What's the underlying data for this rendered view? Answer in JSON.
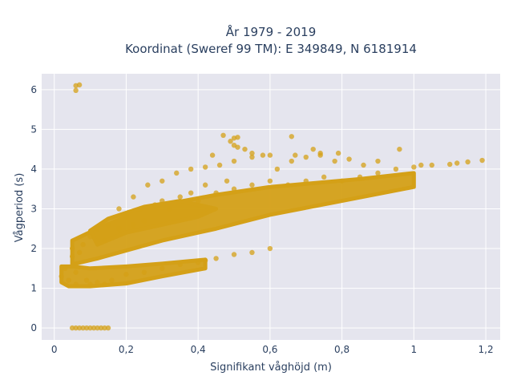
{
  "chart_data": {
    "type": "scatter",
    "title_line1": "År 1979 - 2019",
    "title_line2": "Koordinat (Sweref 99 TM): E 349849, N 6181914",
    "xlabel": "Signifikant våghöjd (m)",
    "ylabel": "Vågperiod (s)",
    "xlim": [
      -0.035,
      1.24
    ],
    "ylim": [
      -0.3,
      6.4
    ],
    "x_tick_values": [
      0,
      0.2,
      0.4,
      0.6,
      0.8,
      1.0,
      1.2
    ],
    "x_tick_labels": [
      "0",
      "0,2",
      "0,4",
      "0,6",
      "0,8",
      "1",
      "1,2"
    ],
    "y_tick_values": [
      0,
      1,
      2,
      3,
      4,
      5,
      6
    ],
    "y_tick_labels": [
      "0",
      "1",
      "2",
      "3",
      "4",
      "5",
      "6"
    ],
    "grid": true,
    "marker_color": "#d4a017",
    "background_color": "#e5e5ee",
    "points": [
      [
        0.06,
        6.1
      ],
      [
        0.07,
        6.12
      ],
      [
        0.06,
        5.98
      ],
      [
        0.05,
        0
      ],
      [
        0.06,
        0
      ],
      [
        0.07,
        0
      ],
      [
        0.08,
        0
      ],
      [
        0.09,
        0
      ],
      [
        0.1,
        0
      ],
      [
        0.11,
        0
      ],
      [
        0.12,
        0
      ],
      [
        0.13,
        0
      ],
      [
        0.14,
        0
      ],
      [
        0.15,
        0
      ],
      [
        0.02,
        1.3
      ],
      [
        0.03,
        1.5
      ],
      [
        0.04,
        1.2
      ],
      [
        0.05,
        1.8
      ],
      [
        0.06,
        1.4
      ],
      [
        0.05,
        2.0
      ],
      [
        0.07,
        1.9
      ],
      [
        0.08,
        2.1
      ],
      [
        0.06,
        1.1
      ],
      [
        0.09,
        1.2
      ],
      [
        0.1,
        1.1
      ],
      [
        0.12,
        1.15
      ],
      [
        0.14,
        1.1
      ],
      [
        0.16,
        1.2
      ],
      [
        0.1,
        2.3
      ],
      [
        0.12,
        2.5
      ],
      [
        0.14,
        2.2
      ],
      [
        0.15,
        2.6
      ],
      [
        0.18,
        2.5
      ],
      [
        0.2,
        2.8
      ],
      [
        0.22,
        2.6
      ],
      [
        0.24,
        3.0
      ],
      [
        0.25,
        2.7
      ],
      [
        0.28,
        3.1
      ],
      [
        0.3,
        3.2
      ],
      [
        0.32,
        3.0
      ],
      [
        0.35,
        3.3
      ],
      [
        0.38,
        3.4
      ],
      [
        0.4,
        3.2
      ],
      [
        0.42,
        3.6
      ],
      [
        0.45,
        3.4
      ],
      [
        0.48,
        3.7
      ],
      [
        0.5,
        3.5
      ],
      [
        0.55,
        3.6
      ],
      [
        0.6,
        3.7
      ],
      [
        0.65,
        3.6
      ],
      [
        0.7,
        3.7
      ],
      [
        0.75,
        3.8
      ],
      [
        0.8,
        3.7
      ],
      [
        0.85,
        3.8
      ],
      [
        0.9,
        3.9
      ],
      [
        0.95,
        4.0
      ],
      [
        1.0,
        4.05
      ],
      [
        1.02,
        4.1
      ],
      [
        1.05,
        4.1
      ],
      [
        1.1,
        4.12
      ],
      [
        1.12,
        4.15
      ],
      [
        1.15,
        4.18
      ],
      [
        1.19,
        4.22
      ],
      [
        0.2,
        1.35
      ],
      [
        0.25,
        1.4
      ],
      [
        0.3,
        1.5
      ],
      [
        0.35,
        1.6
      ],
      [
        0.4,
        1.65
      ],
      [
        0.42,
        1.7
      ],
      [
        0.45,
        1.75
      ],
      [
        0.5,
        1.85
      ],
      [
        0.55,
        1.9
      ],
      [
        0.6,
        2.0
      ],
      [
        0.18,
        3.0
      ],
      [
        0.22,
        3.3
      ],
      [
        0.26,
        3.6
      ],
      [
        0.3,
        3.7
      ],
      [
        0.34,
        3.9
      ],
      [
        0.38,
        4.0
      ],
      [
        0.42,
        4.05
      ],
      [
        0.46,
        4.1
      ],
      [
        0.5,
        4.2
      ],
      [
        0.55,
        4.3
      ],
      [
        0.58,
        4.35
      ],
      [
        0.62,
        4.0
      ],
      [
        0.66,
        4.2
      ],
      [
        0.7,
        4.3
      ],
      [
        0.74,
        4.35
      ],
      [
        0.78,
        4.2
      ],
      [
        0.82,
        4.25
      ],
      [
        0.86,
        4.1
      ],
      [
        0.9,
        4.2
      ],
      [
        0.96,
        4.5
      ],
      [
        0.47,
        4.85
      ],
      [
        0.5,
        4.78
      ],
      [
        0.51,
        4.8
      ],
      [
        0.66,
        4.82
      ],
      [
        0.49,
        4.7
      ],
      [
        0.5,
        4.6
      ],
      [
        0.51,
        4.55
      ],
      [
        0.53,
        4.5
      ],
      [
        0.44,
        4.35
      ],
      [
        0.74,
        4.4
      ],
      [
        0.79,
        4.4
      ],
      [
        0.72,
        4.5
      ],
      [
        0.67,
        4.35
      ],
      [
        0.6,
        4.35
      ],
      [
        0.55,
        4.4
      ]
    ]
  }
}
